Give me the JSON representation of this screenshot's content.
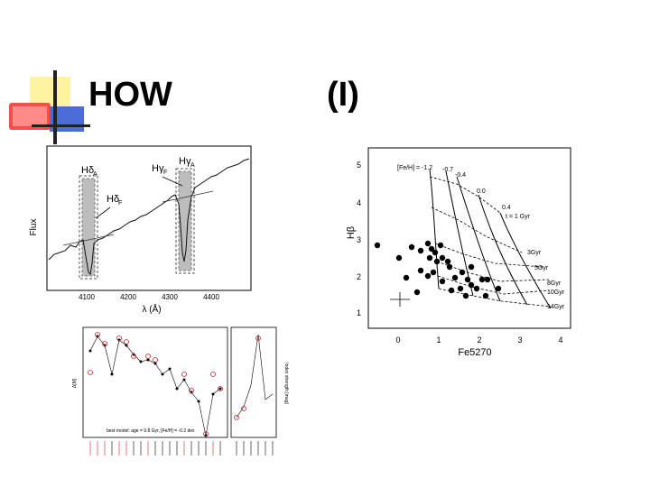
{
  "slide": {
    "title_left": "HOW",
    "title_right": "(I)"
  },
  "spectrum_panel": {
    "ylabel": "Flux",
    "xlabel": "λ (Å)",
    "xticks": [
      "4100",
      "4200",
      "4300",
      "4400"
    ],
    "labels": {
      "hdelta_a": "Hδ",
      "hdelta_a_sub": "A",
      "hgamma_f": "Hγ",
      "hgamma_f_sub": "F",
      "hgamma_a": "Hγ",
      "hgamma_a_sub": "A",
      "hdelta_f": "Hδ",
      "hdelta_f_sub": "F"
    }
  },
  "index_grid_panel": {
    "ylabel": "Hβ",
    "xlabel": "Fe5270",
    "xticks": [
      "0",
      "1",
      "2",
      "3",
      "4"
    ],
    "yticks": [
      "5",
      "4",
      "3",
      "2",
      "1"
    ],
    "feh_label": "[Fe/H] = -1.2",
    "metallicity_labels": [
      "-0.7",
      "-0.4",
      "0.0",
      "0.4"
    ],
    "age_labels": [
      "t = 1 Gyr",
      "3Gyr",
      "5Gyr",
      "8Gyr",
      "10Gyr",
      "14Gyr"
    ]
  },
  "residual_panel": {
    "ylabel_left": "Δ[M]",
    "ylabel_right": "Index strength [mag]",
    "legend_text": "best model: age = 9.8 Gyr, [Fe/H] = -0.2 dex"
  }
}
